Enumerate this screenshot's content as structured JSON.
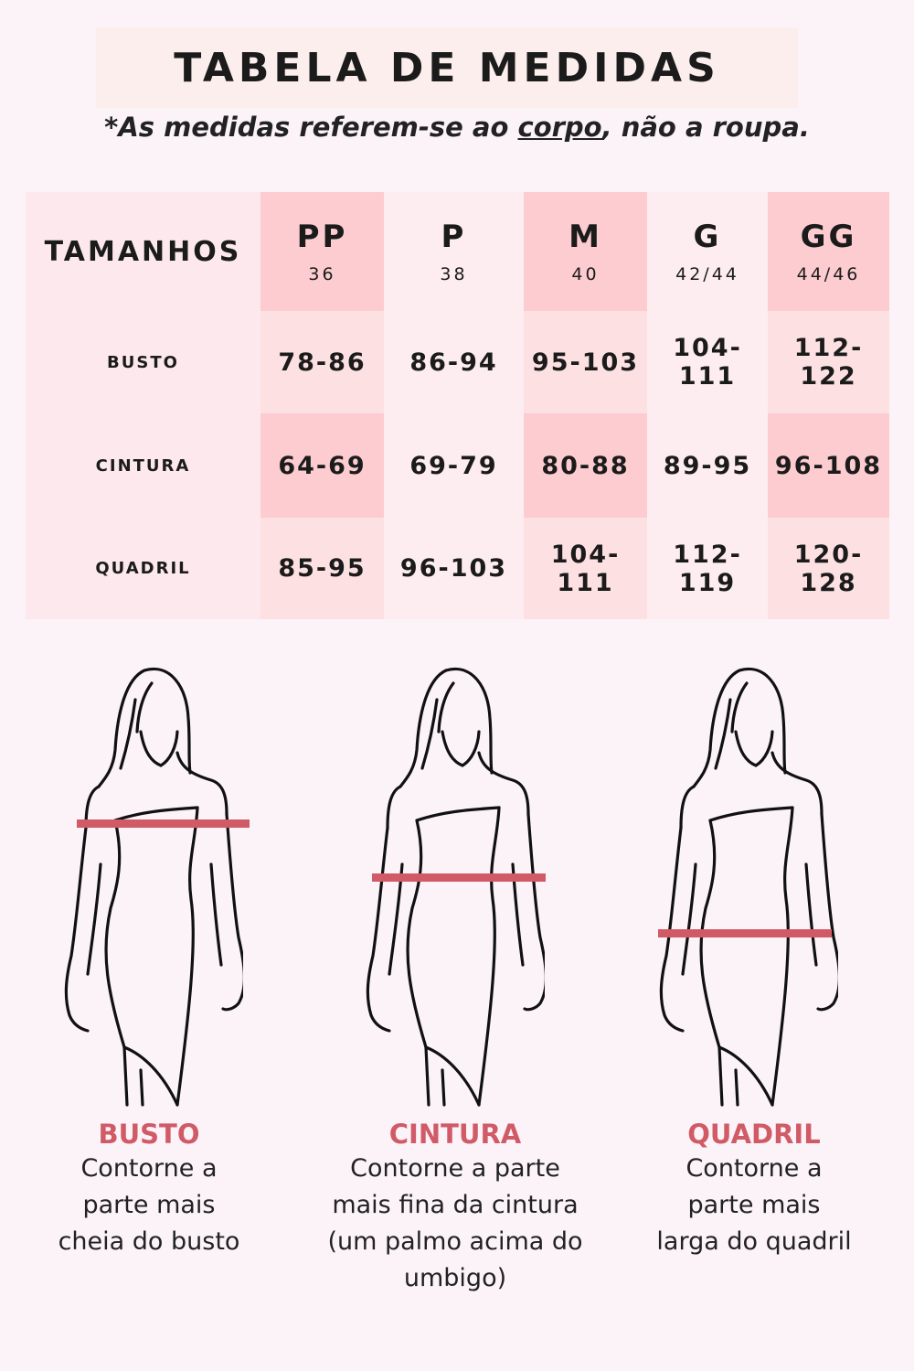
{
  "header": {
    "title": "TABELA DE MEDIDAS",
    "subtitle_pre": "*As medidas referem-se ao ",
    "subtitle_underlined": "corpo",
    "subtitle_post": ", não a roupa."
  },
  "table": {
    "corner": "TAMANHOS",
    "sizes": [
      {
        "label": "PP",
        "num": "36"
      },
      {
        "label": "P",
        "num": "38"
      },
      {
        "label": "M",
        "num": "40"
      },
      {
        "label": "G",
        "num": "42/44"
      },
      {
        "label": "GG",
        "num": "44/46"
      }
    ],
    "rows": [
      {
        "label": "BUSTO",
        "values": [
          "78-86",
          "86-94",
          "95-103",
          "104-111",
          "112-122"
        ]
      },
      {
        "label": "CINTURA",
        "values": [
          "64-69",
          "69-79",
          "80-88",
          "89-95",
          "96-108"
        ]
      },
      {
        "label": "QUADRIL",
        "values": [
          "85-95",
          "96-103",
          "104-111",
          "112-119",
          "120-128"
        ]
      }
    ]
  },
  "colors": {
    "accent": "#d05b67",
    "table_light": "#fdedf0",
    "table_dark": "#fcccd0",
    "background": "#fcf3f8"
  },
  "guides": [
    {
      "title": "BUSTO",
      "lines": [
        "Contorne a",
        "parte mais",
        "cheia do busto"
      ]
    },
    {
      "title": "CINTURA",
      "lines": [
        "Contorne a parte",
        "mais fina da cintura",
        "(um palmo acima do umbigo)"
      ]
    },
    {
      "title": "QUADRIL",
      "lines": [
        "Contorne a",
        "parte mais",
        "larga do quadril"
      ]
    }
  ]
}
